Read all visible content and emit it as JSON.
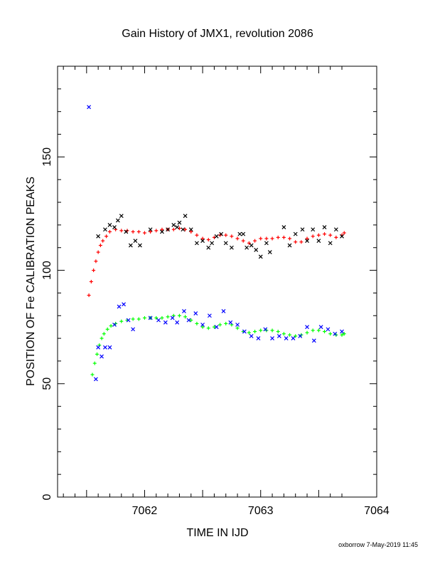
{
  "chart_data": {
    "type": "scatter",
    "title": "Gain History of JMX1, revolution 2086",
    "xlabel": "TIME IN IJD",
    "ylabel": "POSITION OF Fe CALIBRATION PEAKS",
    "xlim": [
      7061.25,
      7064.0
    ],
    "ylim": [
      0,
      190
    ],
    "x_ticks": [
      7062,
      7063,
      7064
    ],
    "y_ticks": [
      0,
      50,
      100,
      150
    ],
    "grid": false,
    "legend": "none",
    "footer": "oxborrow  7-May-2019 11:45",
    "series": [
      {
        "marker": "plus",
        "color": "#ff0000",
        "description": "upper fit",
        "x": [
          7061.52,
          7061.54,
          7061.56,
          7061.58,
          7061.6,
          7061.62,
          7061.64,
          7061.67,
          7061.7,
          7061.75,
          7061.8,
          7061.85,
          7061.9,
          7061.95,
          7062.0,
          7062.05,
          7062.1,
          7062.15,
          7062.2,
          7062.25,
          7062.3,
          7062.35,
          7062.4,
          7062.45,
          7062.5,
          7062.55,
          7062.6,
          7062.65,
          7062.7,
          7062.75,
          7062.8,
          7062.85,
          7062.9,
          7062.95,
          7063.0,
          7063.05,
          7063.1,
          7063.15,
          7063.2,
          7063.25,
          7063.3,
          7063.35,
          7063.4,
          7063.45,
          7063.5,
          7063.55,
          7063.6,
          7063.65,
          7063.7,
          7063.72
        ],
        "y": [
          89,
          95,
          100,
          104,
          108,
          111,
          113,
          115,
          117,
          118,
          117.5,
          117.5,
          117,
          117,
          116.5,
          117,
          117.5,
          118,
          118,
          118,
          118.5,
          118,
          117,
          115.5,
          114,
          113.5,
          114.5,
          115.5,
          115.5,
          115,
          114,
          113,
          112,
          113,
          114,
          114,
          114,
          114.5,
          114.5,
          114,
          112.5,
          112.5,
          114,
          115,
          115.5,
          116,
          115.5,
          114.5,
          115.5,
          116.5
        ]
      },
      {
        "marker": "cross",
        "color": "#000000",
        "description": "upper measured",
        "x": [
          7061.6,
          7061.66,
          7061.7,
          7061.74,
          7061.77,
          7061.8,
          7061.84,
          7061.88,
          7061.92,
          7061.96,
          7062.05,
          7062.15,
          7062.2,
          7062.25,
          7062.28,
          7062.3,
          7062.33,
          7062.35,
          7062.4,
          7062.45,
          7062.5,
          7062.55,
          7062.58,
          7062.62,
          7062.66,
          7062.7,
          7062.75,
          7062.82,
          7062.85,
          7062.88,
          7062.92,
          7062.96,
          7063.0,
          7063.05,
          7063.08,
          7063.2,
          7063.25,
          7063.3,
          7063.36,
          7063.4,
          7063.45,
          7063.5,
          7063.55,
          7063.6,
          7063.65,
          7063.7
        ],
        "y": [
          115,
          118,
          120,
          119,
          122,
          124,
          117,
          111,
          113,
          111,
          118,
          117,
          118,
          120,
          119,
          121,
          118,
          124,
          118,
          112,
          113,
          110,
          112,
          115,
          116,
          112,
          110,
          116,
          116,
          110,
          111,
          109,
          106,
          112,
          108,
          119,
          111,
          116,
          118,
          113,
          118,
          113,
          119,
          112,
          118,
          115
        ]
      },
      {
        "marker": "plus",
        "color": "#00ff00",
        "description": "lower fit",
        "x": [
          7061.55,
          7061.57,
          7061.59,
          7061.61,
          7061.63,
          7061.65,
          7061.68,
          7061.71,
          7061.75,
          7061.8,
          7061.85,
          7061.9,
          7061.95,
          7062.0,
          7062.05,
          7062.1,
          7062.15,
          7062.2,
          7062.25,
          7062.3,
          7062.35,
          7062.4,
          7062.45,
          7062.5,
          7062.55,
          7062.6,
          7062.65,
          7062.7,
          7062.75,
          7062.8,
          7062.85,
          7062.9,
          7062.95,
          7063.0,
          7063.05,
          7063.1,
          7063.15,
          7063.2,
          7063.25,
          7063.3,
          7063.35,
          7063.4,
          7063.45,
          7063.5,
          7063.55,
          7063.6,
          7063.65,
          7063.7,
          7063.72
        ],
        "y": [
          54,
          59,
          63,
          67,
          70,
          72,
          74,
          75.5,
          76.5,
          77.5,
          78,
          78.5,
          78.5,
          79,
          79,
          79,
          79,
          79.5,
          80,
          80,
          79.5,
          78,
          76.5,
          75,
          74.5,
          75,
          76,
          76.5,
          76,
          74.5,
          73,
          72.5,
          73,
          73.5,
          73.5,
          73.5,
          73,
          72,
          71.5,
          71,
          71.5,
          72.5,
          73.5,
          73.5,
          73,
          72,
          71.5,
          71.5,
          72
        ]
      },
      {
        "marker": "cross",
        "color": "#0000ff",
        "description": "lower measured",
        "x": [
          7061.52,
          7061.58,
          7061.6,
          7061.63,
          7061.66,
          7061.7,
          7061.74,
          7061.78,
          7061.82,
          7061.86,
          7061.9,
          7062.05,
          7062.12,
          7062.18,
          7062.24,
          7062.28,
          7062.34,
          7062.38,
          7062.44,
          7062.5,
          7062.56,
          7062.62,
          7062.68,
          7062.74,
          7062.8,
          7062.86,
          7062.92,
          7062.98,
          7063.04,
          7063.1,
          7063.16,
          7063.22,
          7063.28,
          7063.34,
          7063.4,
          7063.46,
          7063.52,
          7063.58,
          7063.64,
          7063.7
        ],
        "y": [
          172,
          52,
          66,
          62,
          66,
          66,
          76,
          84,
          85,
          78,
          74,
          79,
          78,
          77,
          79,
          77,
          82,
          78,
          81,
          76,
          80,
          75,
          82,
          77,
          76,
          73,
          71,
          70,
          74,
          70,
          71,
          70,
          70,
          71,
          75,
          69,
          75,
          74,
          72,
          73
        ]
      }
    ]
  }
}
